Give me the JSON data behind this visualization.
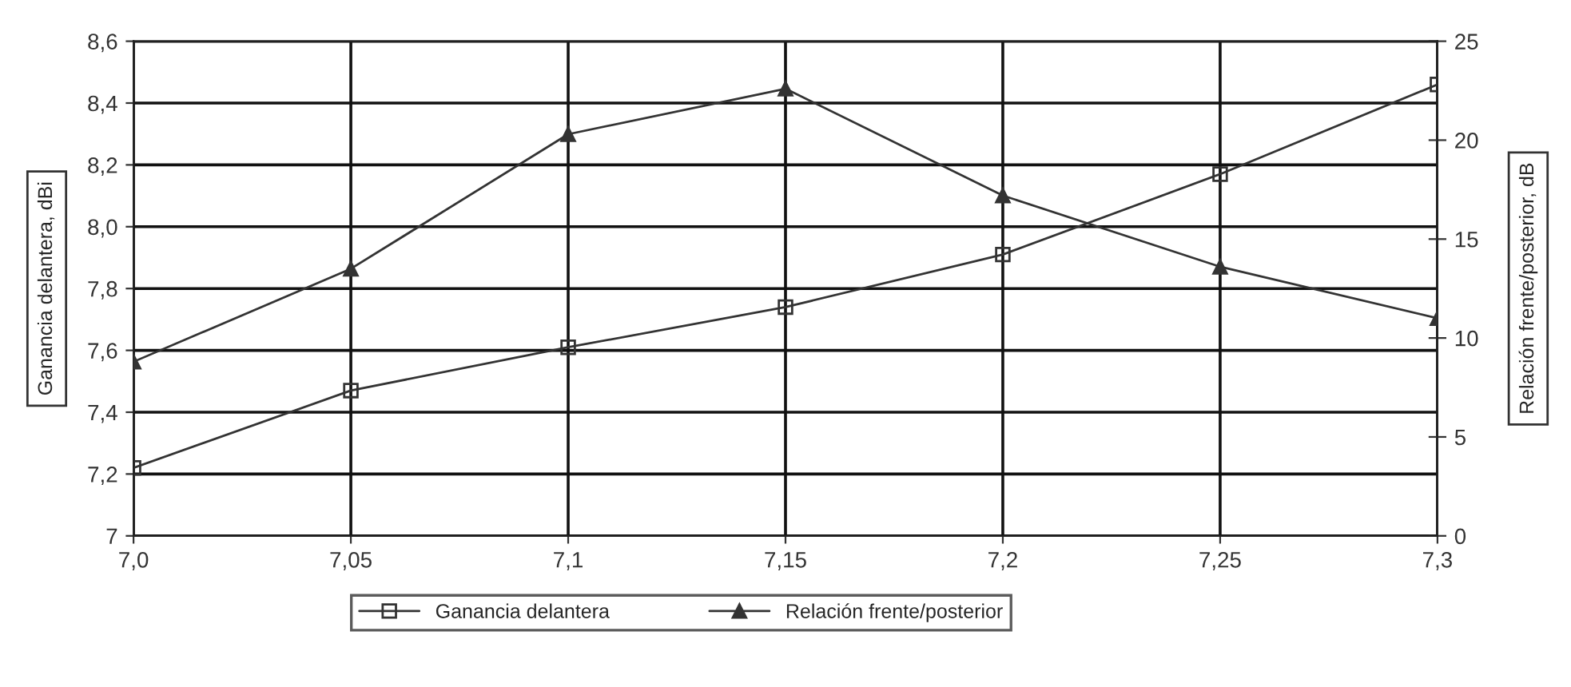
{
  "chart_data": {
    "type": "line",
    "xlabel": null,
    "ylabel": "Ganancia delantera, dBi",
    "y2label": "Relación frente/posterior, dB",
    "x": [
      7.0,
      7.05,
      7.1,
      7.15,
      7.2,
      7.25,
      7.3
    ],
    "series": [
      {
        "name": "Ganancia delantera",
        "color": "#333333",
        "marker": "square",
        "values": [
          7.22,
          7.47,
          7.61,
          7.74,
          7.91,
          8.17,
          8.46
        ]
      },
      {
        "name": "Relación frente/posterior",
        "color": "#333333",
        "marker": "triangle",
        "axis": "y2",
        "values": [
          8.8,
          13.5,
          20.3,
          22.6,
          17.2,
          13.6,
          11.0
        ]
      }
    ],
    "xlim": [
      7.0,
      7.3
    ],
    "xticks": [
      {
        "value": 7.0,
        "label": "7,0"
      },
      {
        "value": 7.05,
        "label": "7,05"
      },
      {
        "value": 7.1,
        "label": "7,1"
      },
      {
        "value": 7.15,
        "label": "7,15"
      },
      {
        "value": 7.2,
        "label": "7,2"
      },
      {
        "value": 7.25,
        "label": "7,25"
      },
      {
        "value": 7.3,
        "label": "7,3"
      }
    ],
    "ylim": [
      7,
      8.6
    ],
    "yticks": [
      7,
      {
        "value": 7.2,
        "label": "7,2"
      },
      {
        "value": 7.4,
        "label": "7,4"
      },
      {
        "value": 7.6,
        "label": "7,6"
      },
      {
        "value": 7.8,
        "label": "7,8"
      },
      {
        "value": 8.0,
        "label": "8,0"
      },
      {
        "value": 8.2,
        "label": "8,2"
      },
      {
        "value": 8.4,
        "label": "8,4"
      },
      {
        "value": 8.6,
        "label": "8,6"
      }
    ],
    "y2lim": [
      0,
      25
    ],
    "y2ticks": [
      0,
      5,
      10,
      15,
      20,
      25
    ],
    "grid": true,
    "legend": "bottom",
    "line_style": "solid"
  }
}
